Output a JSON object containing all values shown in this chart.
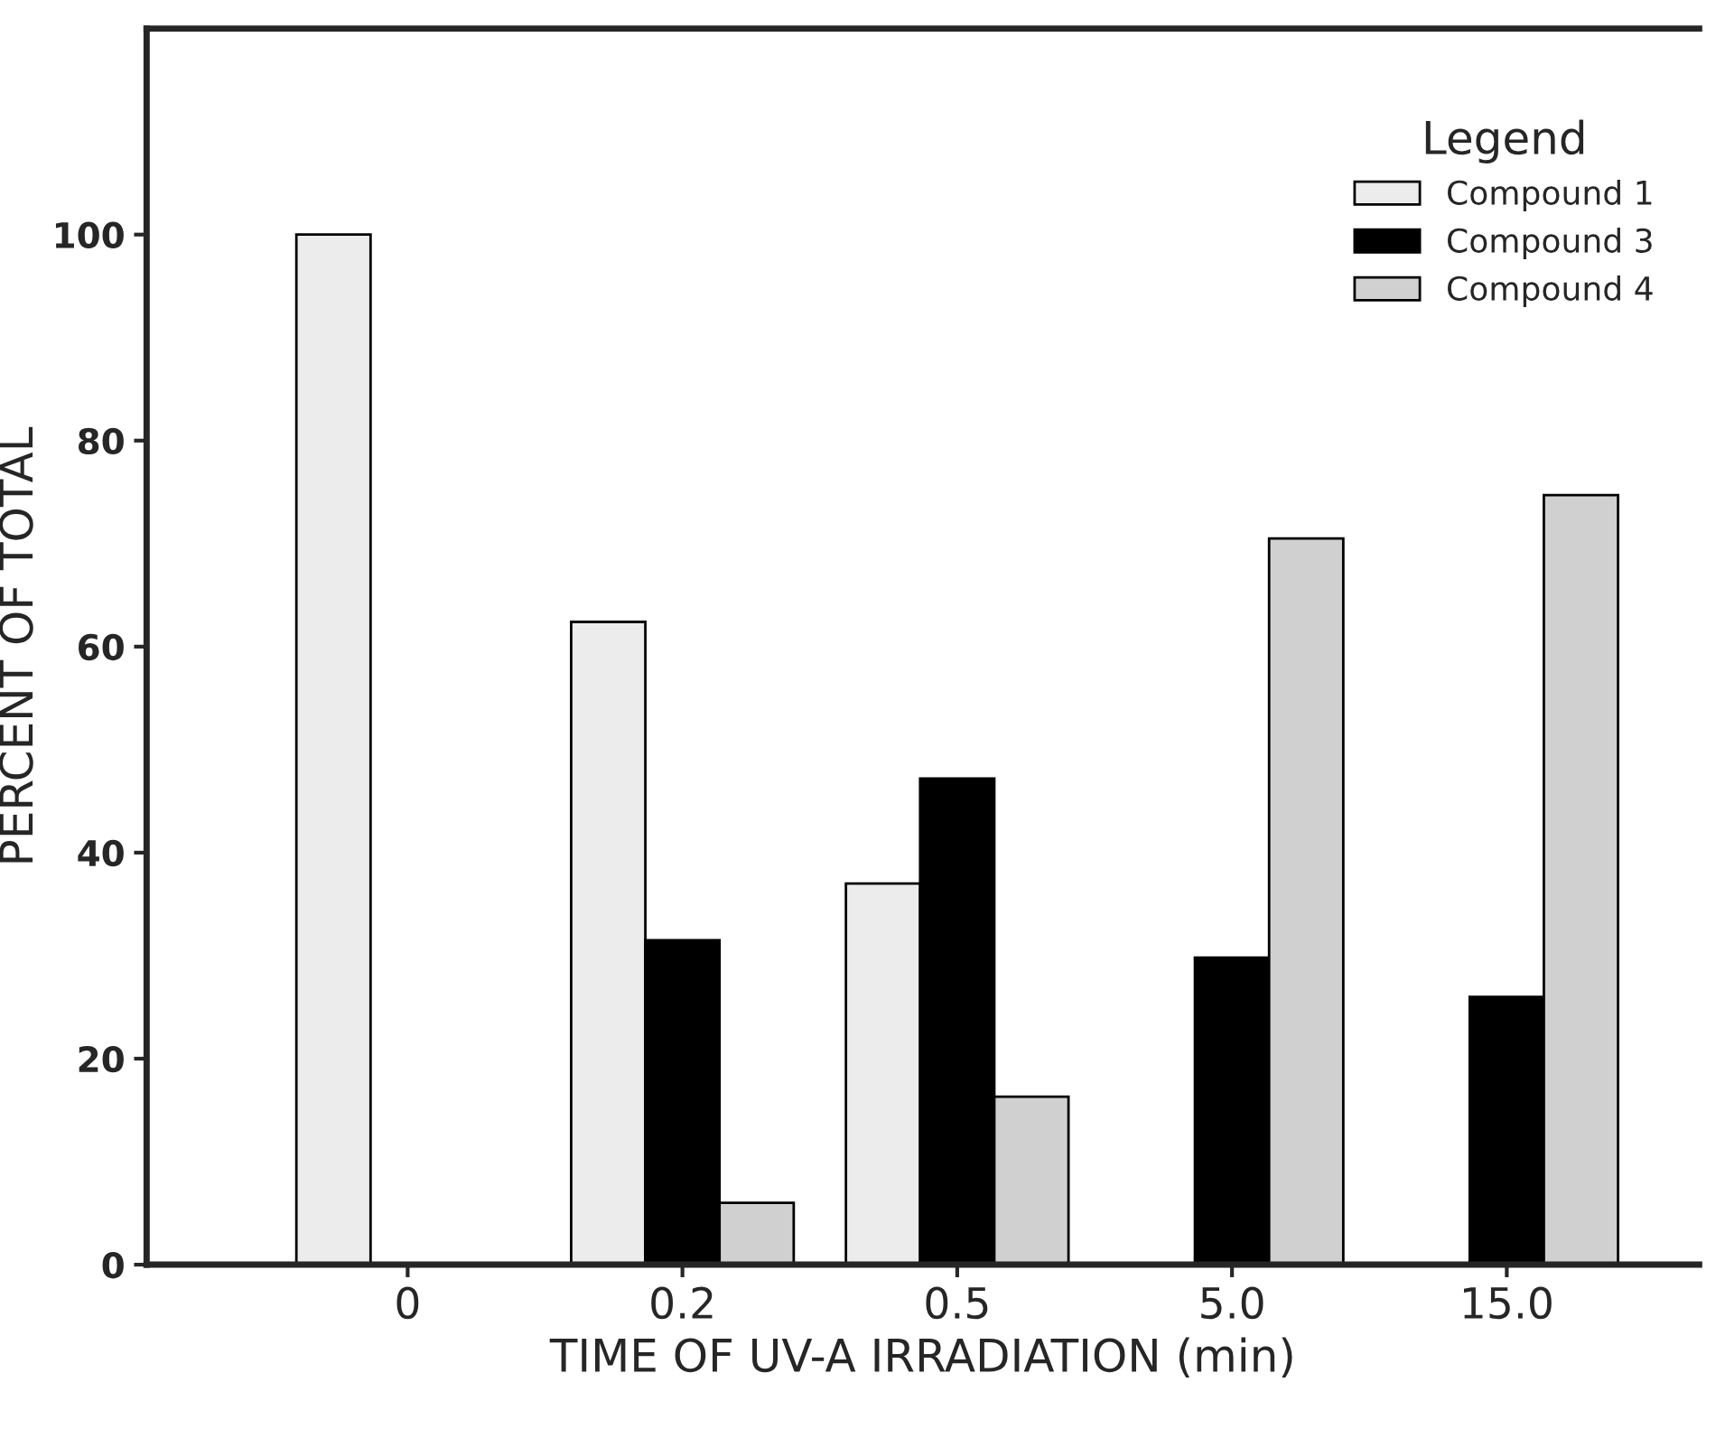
{
  "chart_data": {
    "type": "bar",
    "xlabel": "TIME OF UV-A IRRADIATION (min)",
    "ylabel": "PERCENT OF TOTAL",
    "legend_title": "Legend",
    "categories": [
      "0",
      "0.2",
      "0.5",
      "5.0",
      "15.0"
    ],
    "series": [
      {
        "name": "Compound 1",
        "color": "#ececec",
        "values": [
          100,
          62.4,
          37.0,
          null,
          null
        ]
      },
      {
        "name": "Compound 3",
        "color": "#000000",
        "values": [
          null,
          31.5,
          47.2,
          29.8,
          26.0
        ]
      },
      {
        "name": "Compound 4",
        "color": "#d0d0d0",
        "values": [
          null,
          6.0,
          16.3,
          70.5,
          74.7
        ]
      }
    ],
    "ylim": [
      0,
      120
    ],
    "yticks": [
      0,
      20,
      40,
      60,
      80,
      100
    ],
    "grid": false,
    "legend": "top right"
  }
}
